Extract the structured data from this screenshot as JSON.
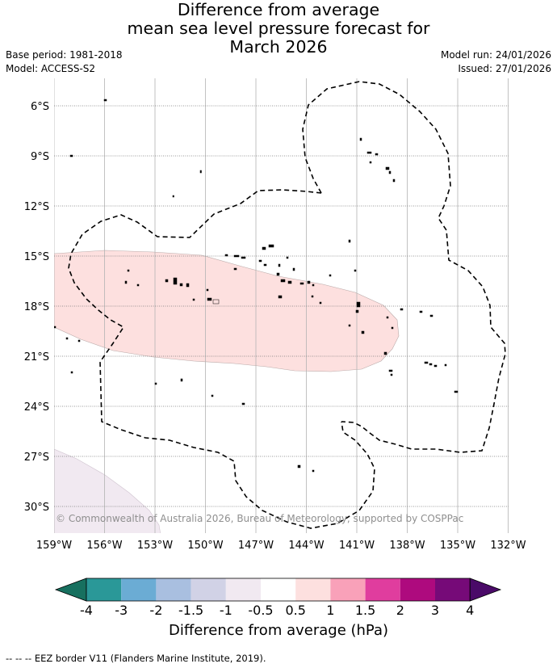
{
  "title": {
    "line1": "Difference from average",
    "line2": "mean sea level pressure forecast for",
    "line3": "March 2026"
  },
  "meta": {
    "base_period": "Base period: 1981-2018",
    "model": "Model: ACCESS-S2",
    "model_run": "Model run: 24/01/2026",
    "issued": "Issued: 27/01/2026"
  },
  "map": {
    "lon_labels": [
      "159°W",
      "156°W",
      "153°W",
      "150°W",
      "147°W",
      "144°W",
      "141°W",
      "138°W",
      "135°W",
      "132°W"
    ],
    "lat_labels": [
      "6°S",
      "9°S",
      "12°S",
      "15°S",
      "18°S",
      "21°S",
      "24°S",
      "27°S",
      "30°S"
    ],
    "copyright": "© Commonwealth of Australia 2026, Bureau of Meteorology, supported by COSPPac",
    "anomaly_regions": [
      {
        "name": "positive-anomaly-0.5-to-1",
        "color": "#fde0df"
      },
      {
        "name": "negative-anomaly-0.5-to-1",
        "color": "#f1e9f1"
      }
    ]
  },
  "colorbar": {
    "ticks": [
      "-4",
      "-3",
      "-2",
      "-1.5",
      "-1",
      "-0.5",
      "0.5",
      "1",
      "1.5",
      "2",
      "3",
      "4"
    ],
    "colors": [
      "#17705f",
      "#2a9898",
      "#6bacd4",
      "#a9bfe0",
      "#d1d2e6",
      "#f1e9f1",
      "#ffffff",
      "#fde0df",
      "#f9a1b9",
      "#e03d9e",
      "#ae0a7e",
      "#760a78",
      "#4a0a68"
    ],
    "label": "Difference from average (hPa)"
  },
  "footer": "--  --  -- EEZ border V11 (Flanders Marine Institute, 2019)."
}
